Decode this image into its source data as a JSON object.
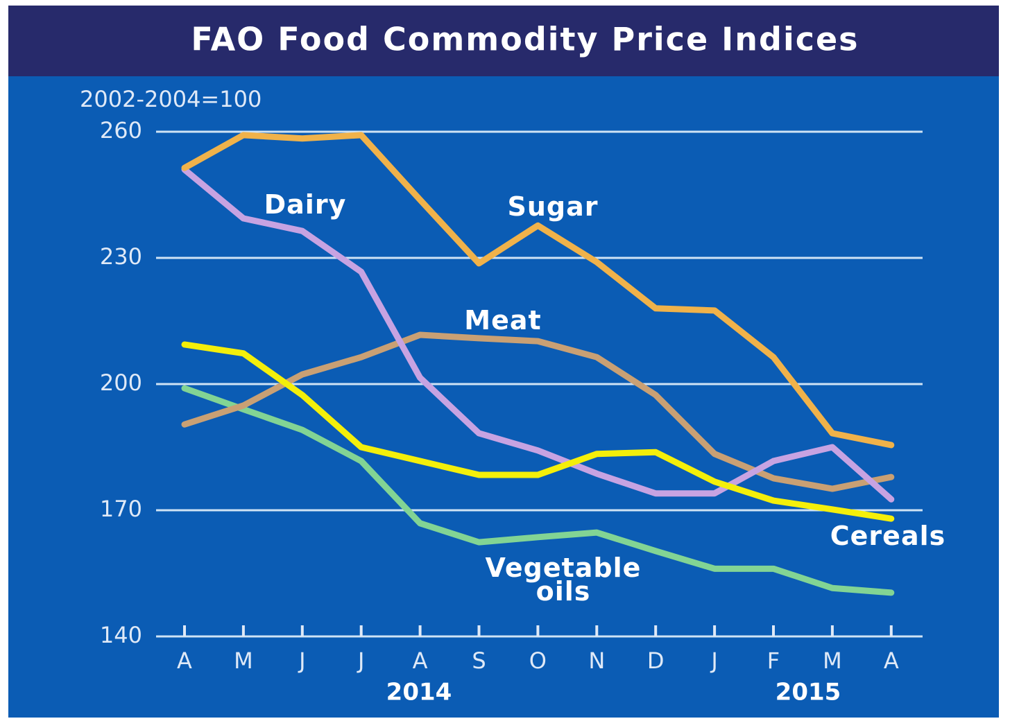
{
  "chart_data": {
    "type": "line",
    "title": "FAO Food Commodity Price Indices",
    "subtitle": "2002-2004=100",
    "categories": [
      "A",
      "M",
      "J",
      "J",
      "A",
      "S",
      "O",
      "N",
      "D",
      "J",
      "F",
      "M",
      "A"
    ],
    "year_labels": [
      "2014",
      "2015"
    ],
    "ylim": [
      140,
      260
    ],
    "yticks": [
      140,
      170,
      200,
      230,
      260
    ],
    "grid": true,
    "series": [
      {
        "name": "Sugar",
        "color": "#f0b24a",
        "values": [
          251.4,
          259.2,
          258.4,
          259.2,
          243.8,
          228.7,
          237.7,
          229.0,
          218.0,
          217.5,
          206.4,
          188.3,
          185.5
        ]
      },
      {
        "name": "Dairy",
        "color": "#c7a3e2",
        "values": [
          251.0,
          239.4,
          236.4,
          226.7,
          201.5,
          188.3,
          184.2,
          178.7,
          174.0,
          174.0,
          181.7,
          185.0,
          172.6
        ]
      },
      {
        "name": "Meat",
        "color": "#c9a074",
        "values": [
          190.4,
          194.9,
          202.3,
          206.4,
          211.7,
          210.9,
          210.2,
          206.4,
          197.4,
          183.4,
          177.6,
          175.1,
          177.9
        ]
      },
      {
        "name": "Cereals",
        "color": "#f4ef0a",
        "values": [
          209.4,
          207.3,
          197.4,
          185.0,
          181.7,
          178.4,
          178.4,
          183.4,
          183.8,
          176.8,
          172.3,
          170.2,
          168.0
        ]
      },
      {
        "name": "Vegetable oils",
        "color": "#82d494",
        "values": [
          199.0,
          194.0,
          189.1,
          181.7,
          166.9,
          162.4,
          163.6,
          164.7,
          160.3,
          156.1,
          156.1,
          151.5,
          150.4
        ]
      }
    ]
  }
}
